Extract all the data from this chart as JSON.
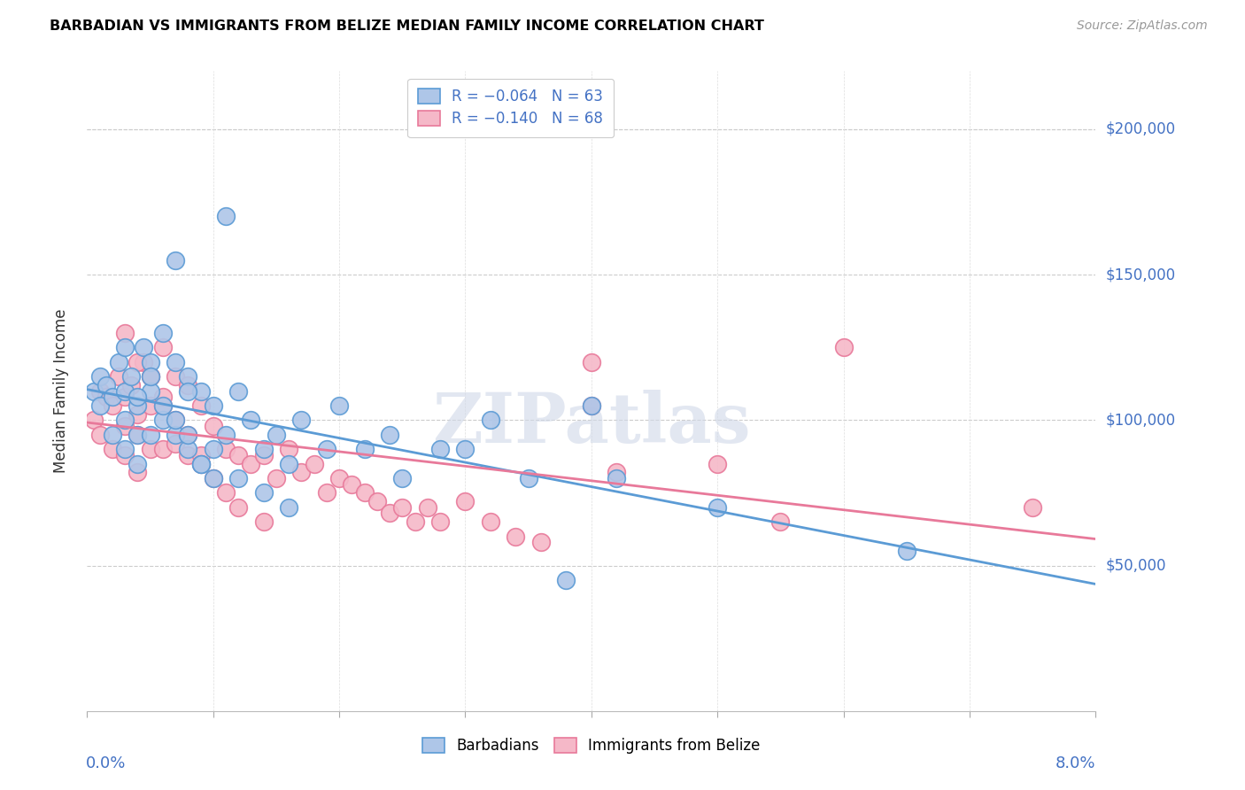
{
  "title": "BARBADIAN VS IMMIGRANTS FROM BELIZE MEDIAN FAMILY INCOME CORRELATION CHART",
  "source": "Source: ZipAtlas.com",
  "ylabel": "Median Family Income",
  "ytick_labels": [
    "$50,000",
    "$100,000",
    "$150,000",
    "$200,000"
  ],
  "ytick_values": [
    50000,
    100000,
    150000,
    200000
  ],
  "xlim": [
    0.0,
    0.08
  ],
  "ylim": [
    0,
    220000
  ],
  "legend_label1": "Barbadians",
  "legend_label2": "Immigrants from Belize",
  "color_blue_fill": "#aec6e8",
  "color_pink_fill": "#f5b8c8",
  "color_blue_edge": "#5b9bd5",
  "color_pink_edge": "#e8799a",
  "color_blue_line": "#5b9bd5",
  "color_pink_line": "#e8799a",
  "color_text_blue": "#4472c4",
  "watermark": "ZIPatlas",
  "barbadians_x": [
    0.0005,
    0.001,
    0.001,
    0.0015,
    0.002,
    0.002,
    0.0025,
    0.003,
    0.003,
    0.003,
    0.0035,
    0.004,
    0.004,
    0.004,
    0.0045,
    0.005,
    0.005,
    0.005,
    0.006,
    0.006,
    0.007,
    0.007,
    0.008,
    0.008,
    0.009,
    0.01,
    0.01,
    0.011,
    0.012,
    0.013,
    0.014,
    0.015,
    0.016,
    0.017,
    0.019,
    0.02,
    0.022,
    0.024,
    0.025,
    0.028,
    0.03,
    0.032,
    0.035,
    0.038,
    0.04,
    0.042,
    0.05,
    0.065,
    0.007,
    0.008,
    0.009,
    0.003,
    0.004,
    0.005,
    0.006,
    0.007,
    0.008,
    0.009,
    0.01,
    0.011,
    0.012,
    0.014,
    0.016
  ],
  "barbadians_y": [
    110000,
    115000,
    105000,
    112000,
    108000,
    95000,
    120000,
    110000,
    100000,
    90000,
    115000,
    105000,
    95000,
    85000,
    125000,
    120000,
    110000,
    95000,
    130000,
    100000,
    120000,
    95000,
    115000,
    90000,
    110000,
    105000,
    90000,
    95000,
    110000,
    100000,
    90000,
    95000,
    85000,
    100000,
    90000,
    105000,
    90000,
    95000,
    80000,
    90000,
    90000,
    100000,
    80000,
    45000,
    105000,
    80000,
    70000,
    55000,
    155000,
    110000,
    85000,
    125000,
    108000,
    115000,
    105000,
    100000,
    95000,
    85000,
    80000,
    170000,
    80000,
    75000,
    70000
  ],
  "belize_x": [
    0.0005,
    0.001,
    0.001,
    0.0015,
    0.002,
    0.002,
    0.0025,
    0.003,
    0.003,
    0.003,
    0.0035,
    0.004,
    0.004,
    0.004,
    0.0045,
    0.005,
    0.005,
    0.005,
    0.006,
    0.006,
    0.006,
    0.007,
    0.007,
    0.008,
    0.008,
    0.009,
    0.009,
    0.01,
    0.011,
    0.012,
    0.013,
    0.014,
    0.015,
    0.016,
    0.017,
    0.018,
    0.019,
    0.02,
    0.021,
    0.022,
    0.023,
    0.024,
    0.025,
    0.026,
    0.027,
    0.028,
    0.03,
    0.032,
    0.034,
    0.036,
    0.003,
    0.004,
    0.005,
    0.006,
    0.007,
    0.008,
    0.009,
    0.01,
    0.011,
    0.012,
    0.014,
    0.04,
    0.042,
    0.05,
    0.055,
    0.06,
    0.075,
    0.04
  ],
  "belize_y": [
    100000,
    110000,
    95000,
    108000,
    105000,
    90000,
    115000,
    108000,
    98000,
    88000,
    112000,
    102000,
    95000,
    82000,
    120000,
    115000,
    105000,
    90000,
    125000,
    105000,
    90000,
    115000,
    92000,
    112000,
    88000,
    105000,
    88000,
    98000,
    90000,
    88000,
    85000,
    88000,
    80000,
    90000,
    82000,
    85000,
    75000,
    80000,
    78000,
    75000,
    72000,
    68000,
    70000,
    65000,
    70000,
    65000,
    72000,
    65000,
    60000,
    58000,
    130000,
    120000,
    115000,
    108000,
    100000,
    95000,
    85000,
    80000,
    75000,
    70000,
    65000,
    120000,
    82000,
    85000,
    65000,
    125000,
    70000,
    105000
  ]
}
